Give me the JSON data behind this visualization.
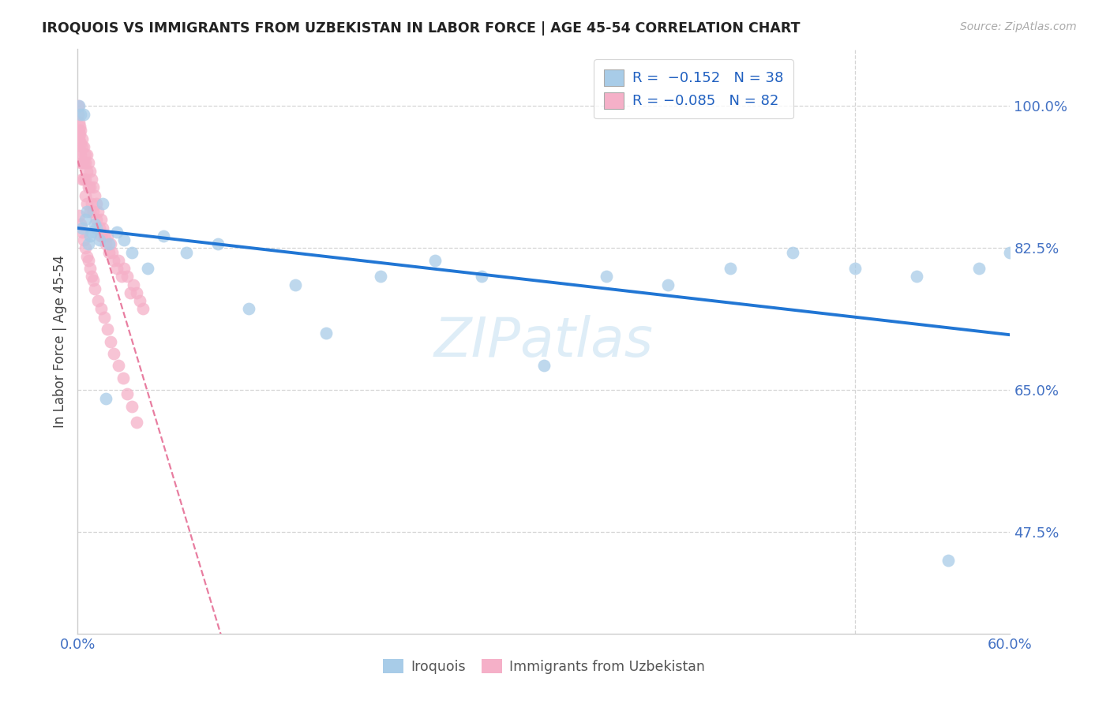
{
  "title": "IROQUOIS VS IMMIGRANTS FROM UZBEKISTAN IN LABOR FORCE | AGE 45-54 CORRELATION CHART",
  "source": "Source: ZipAtlas.com",
  "ylabel": "In Labor Force | Age 45-54",
  "xlim": [
    0.0,
    0.6
  ],
  "ylim": [
    0.35,
    1.07
  ],
  "yticks": [
    0.475,
    0.65,
    0.825,
    1.0
  ],
  "ytick_labels": [
    "47.5%",
    "65.0%",
    "82.5%",
    "100.0%"
  ],
  "xtick_labels": [
    "0.0%",
    "",
    "",
    "",
    "",
    "",
    "60.0%"
  ],
  "xticks": [
    0.0,
    0.1,
    0.2,
    0.3,
    0.4,
    0.5,
    0.6
  ],
  "iroquois_R": -0.152,
  "iroquois_N": 38,
  "uzbek_R": -0.085,
  "uzbek_N": 82,
  "blue_scatter_color": "#a8cce8",
  "pink_scatter_color": "#f5b0c8",
  "blue_line_color": "#2176d4",
  "pink_line_color": "#e87da0",
  "grid_color": "#d5d5d5",
  "tick_color": "#4472c4",
  "title_color": "#222222",
  "source_color": "#aaaaaa",
  "watermark_color": "#cde4f3",
  "legend_text_color": "#2060c0",
  "iroquois_x": [
    0.001,
    0.004,
    0.006,
    0.003,
    0.007,
    0.009,
    0.011,
    0.014,
    0.016,
    0.02,
    0.025,
    0.03,
    0.035,
    0.045,
    0.055,
    0.07,
    0.09,
    0.11,
    0.14,
    0.16,
    0.195,
    0.23,
    0.26,
    0.3,
    0.34,
    0.38,
    0.42,
    0.46,
    0.5,
    0.54,
    0.56,
    0.58,
    0.6,
    0.002,
    0.005,
    0.008,
    0.012,
    0.018
  ],
  "iroquois_y": [
    1.0,
    0.99,
    0.87,
    0.85,
    0.83,
    0.845,
    0.855,
    0.835,
    0.88,
    0.83,
    0.845,
    0.835,
    0.82,
    0.8,
    0.84,
    0.82,
    0.83,
    0.75,
    0.78,
    0.72,
    0.79,
    0.81,
    0.79,
    0.68,
    0.79,
    0.78,
    0.8,
    0.82,
    0.8,
    0.79,
    0.44,
    0.8,
    0.82,
    0.99,
    0.86,
    0.84,
    0.85,
    0.64
  ],
  "uzbek_x": [
    0.0003,
    0.0005,
    0.0007,
    0.0009,
    0.001,
    0.0012,
    0.0014,
    0.0016,
    0.0018,
    0.002,
    0.002,
    0.002,
    0.003,
    0.003,
    0.003,
    0.003,
    0.004,
    0.004,
    0.004,
    0.005,
    0.005,
    0.005,
    0.005,
    0.006,
    0.006,
    0.006,
    0.007,
    0.007,
    0.008,
    0.008,
    0.008,
    0.009,
    0.009,
    0.01,
    0.01,
    0.011,
    0.012,
    0.012,
    0.013,
    0.014,
    0.015,
    0.015,
    0.016,
    0.017,
    0.018,
    0.019,
    0.02,
    0.021,
    0.022,
    0.023,
    0.025,
    0.026,
    0.028,
    0.03,
    0.032,
    0.034,
    0.036,
    0.038,
    0.04,
    0.042,
    0.001,
    0.002,
    0.003,
    0.004,
    0.005,
    0.006,
    0.007,
    0.008,
    0.009,
    0.01,
    0.011,
    0.013,
    0.015,
    0.017,
    0.019,
    0.021,
    0.023,
    0.026,
    0.029,
    0.032,
    0.035,
    0.038
  ],
  "uzbek_y": [
    1.0,
    0.99,
    0.98,
    0.97,
    0.96,
    0.975,
    0.965,
    0.955,
    0.945,
    0.94,
    0.97,
    0.93,
    0.96,
    0.95,
    0.93,
    0.91,
    0.95,
    0.93,
    0.91,
    0.94,
    0.93,
    0.91,
    0.89,
    0.94,
    0.92,
    0.88,
    0.93,
    0.9,
    0.92,
    0.9,
    0.87,
    0.91,
    0.88,
    0.9,
    0.87,
    0.89,
    0.88,
    0.86,
    0.87,
    0.85,
    0.86,
    0.84,
    0.85,
    0.84,
    0.83,
    0.84,
    0.82,
    0.83,
    0.82,
    0.81,
    0.8,
    0.81,
    0.79,
    0.8,
    0.79,
    0.77,
    0.78,
    0.77,
    0.76,
    0.75,
    0.865,
    0.855,
    0.845,
    0.835,
    0.825,
    0.815,
    0.81,
    0.8,
    0.79,
    0.785,
    0.775,
    0.76,
    0.75,
    0.74,
    0.725,
    0.71,
    0.695,
    0.68,
    0.665,
    0.645,
    0.63,
    0.61
  ]
}
